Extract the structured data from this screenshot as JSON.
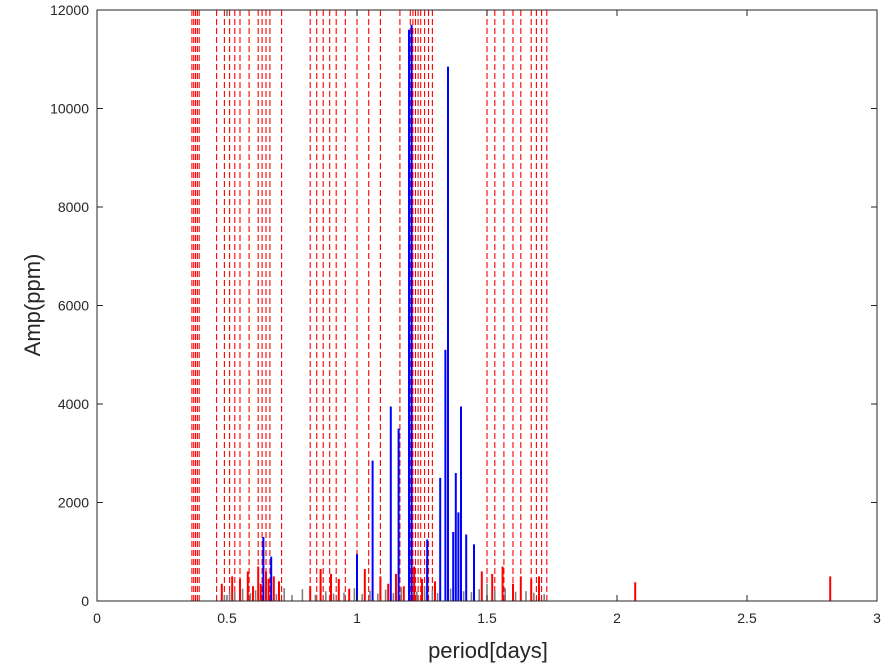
{
  "chart_data": {
    "type": "bar",
    "xlabel": "period[days]",
    "ylabel": "Amp(ppm)",
    "xlim": [
      0,
      3
    ],
    "ylim": [
      0,
      12000
    ],
    "xticks": [
      "0",
      "0.5",
      "1",
      "1.5",
      "2",
      "2.5",
      "3"
    ],
    "yticks": [
      "0",
      "2000",
      "4000",
      "6000",
      "8000",
      "10000",
      "12000"
    ],
    "grid": false,
    "legend": "none",
    "colors": {
      "blue": "#0000ff",
      "red": "#ff0000",
      "gray": "#808080",
      "axis": "#262626"
    },
    "series": [
      {
        "color": "blue",
        "x": [
          0.64,
          0.67,
          1.0,
          1.06,
          1.13,
          1.16,
          1.2,
          1.21,
          1.27,
          1.32,
          1.34,
          1.35,
          1.37,
          1.38,
          1.39,
          1.4,
          1.42,
          1.45
        ],
        "values": [
          1300,
          900,
          950,
          2850,
          3950,
          3500,
          11600,
          11700,
          1250,
          2500,
          5100,
          10850,
          1400,
          2600,
          1800,
          3950,
          1350,
          1150
        ]
      },
      {
        "color": "red",
        "x": [
          0.48,
          0.52,
          0.55,
          0.58,
          0.6,
          0.62,
          0.63,
          0.65,
          0.66,
          0.68,
          0.7,
          0.82,
          0.86,
          0.9,
          0.93,
          0.97,
          1.03,
          1.09,
          1.12,
          1.15,
          1.18,
          1.22,
          1.25,
          1.27,
          1.3,
          1.48,
          1.52,
          1.56,
          1.6,
          1.63,
          1.67,
          1.7,
          2.07,
          2.82
        ],
        "values": [
          350,
          500,
          450,
          600,
          300,
          700,
          350,
          600,
          450,
          500,
          400,
          300,
          650,
          550,
          450,
          250,
          650,
          500,
          350,
          550,
          300,
          700,
          450,
          850,
          400,
          600,
          550,
          700,
          350,
          500,
          450,
          500,
          380,
          500
        ]
      },
      {
        "color": "gray",
        "x": [
          0.49,
          0.51,
          0.53,
          0.56,
          0.59,
          0.61,
          0.64,
          0.67,
          0.69,
          0.72,
          0.75,
          0.79,
          0.84,
          0.88,
          0.91,
          0.95,
          0.99,
          1.02,
          1.05,
          1.08,
          1.11,
          1.14,
          1.17,
          1.23,
          1.26,
          1.29,
          1.31,
          1.36,
          1.41,
          1.44,
          1.47,
          1.5,
          1.53,
          1.57,
          1.61,
          1.65,
          1.68,
          1.72
        ],
        "values": [
          120,
          200,
          180,
          250,
          160,
          220,
          300,
          180,
          140,
          260,
          120,
          240,
          130,
          200,
          150,
          170,
          260,
          140,
          210,
          150,
          230,
          160,
          280,
          190,
          300,
          220,
          160,
          250,
          200,
          180,
          240,
          350,
          210,
          260,
          190,
          200,
          170,
          140
        ]
      }
    ],
    "vlines": {
      "color": "red",
      "style": "dashed",
      "x": [
        0.365,
        0.372,
        0.379,
        0.386,
        0.393,
        0.46,
        0.49,
        0.51,
        0.53,
        0.55,
        0.585,
        0.62,
        0.635,
        0.65,
        0.665,
        0.71,
        0.82,
        0.845,
        0.87,
        0.895,
        0.92,
        0.955,
        1.0,
        1.045,
        1.09,
        1.165,
        1.205,
        1.215,
        1.225,
        1.235,
        1.245,
        1.26,
        1.275,
        1.29,
        1.5,
        1.53,
        1.565,
        1.6,
        1.63,
        1.67,
        1.69,
        1.71,
        1.73
      ]
    }
  }
}
